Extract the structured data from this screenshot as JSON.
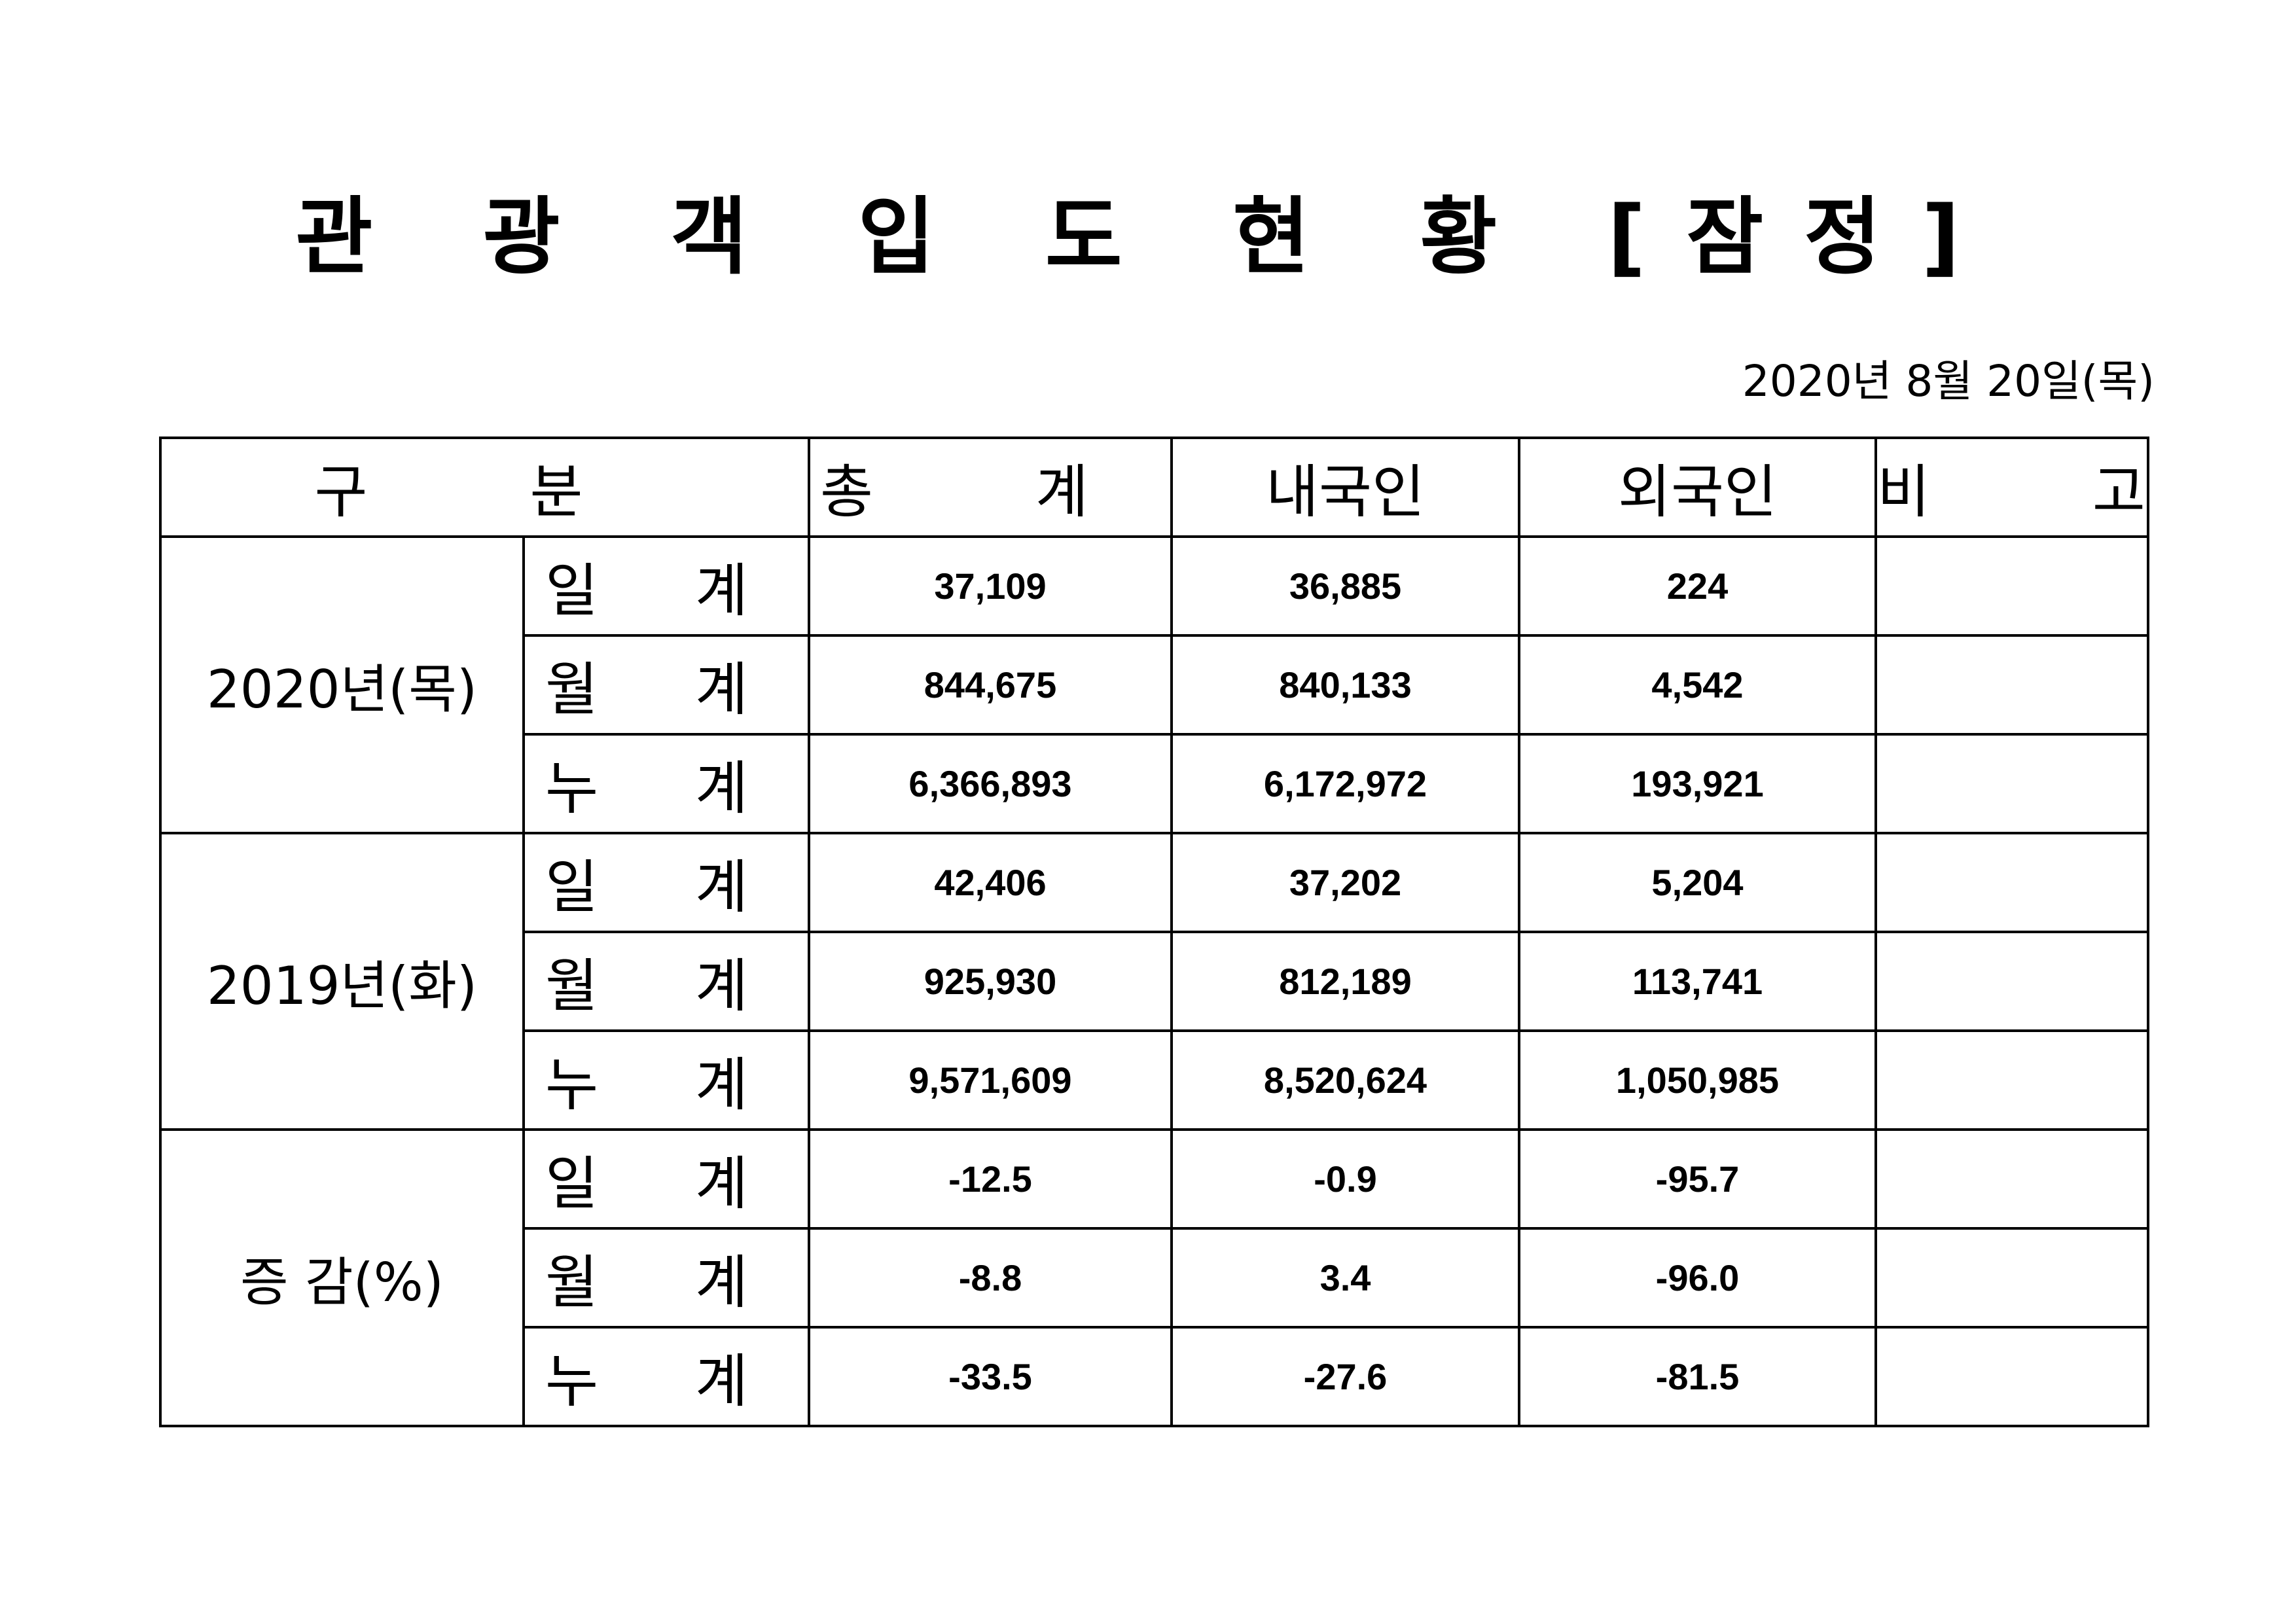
{
  "title": "관 광 객 입 도 현 황 [잠정]",
  "date": "2020년  8월  20일(목)",
  "table": {
    "headers": [
      "구  분",
      "총  계",
      "내국인",
      "외국인",
      "비  고"
    ],
    "groups": [
      {
        "label": "2020년(목)",
        "rows": [
          {
            "label": "일 계",
            "total": "37,109",
            "domestic": "36,885",
            "foreign": "224",
            "note": ""
          },
          {
            "label": "월 계",
            "total": "844,675",
            "domestic": "840,133",
            "foreign": "4,542",
            "note": ""
          },
          {
            "label": "누 계",
            "total": "6,366,893",
            "domestic": "6,172,972",
            "foreign": "193,921",
            "note": ""
          }
        ]
      },
      {
        "label": "2019년(화)",
        "rows": [
          {
            "label": "일 계",
            "total": "42,406",
            "domestic": "37,202",
            "foreign": "5,204",
            "note": ""
          },
          {
            "label": "월 계",
            "total": "925,930",
            "domestic": "812,189",
            "foreign": "113,741",
            "note": ""
          },
          {
            "label": "누 계",
            "total": "9,571,609",
            "domestic": "8,520,624",
            "foreign": "1,050,985",
            "note": ""
          }
        ]
      },
      {
        "label": "증 감(%)",
        "rows": [
          {
            "label": "일 계",
            "total": "-12.5",
            "domestic": "-0.9",
            "foreign": "-95.7",
            "note": ""
          },
          {
            "label": "월 계",
            "total": "-8.8",
            "domestic": "3.4",
            "foreign": "-96.0",
            "note": ""
          },
          {
            "label": "누 계",
            "total": "-33.5",
            "domestic": "-27.6",
            "foreign": "-81.5",
            "note": ""
          }
        ]
      }
    ]
  }
}
